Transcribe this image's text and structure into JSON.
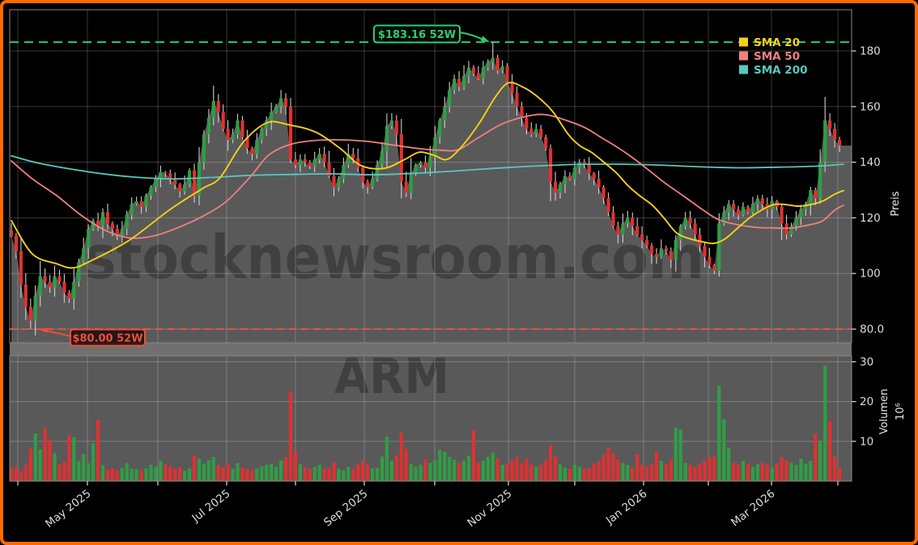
{
  "window": {
    "border_color": "#ff6a00",
    "background": "#000000"
  },
  "watermark": {
    "main": "stocknewsroom.com",
    "symbol": "ARM"
  },
  "legend": [
    {
      "label": "SMA 20",
      "color": "#f5d019"
    },
    {
      "label": "SMA 50",
      "color": "#f08080"
    },
    {
      "label": "SMA 200",
      "color": "#57c8bd"
    }
  ],
  "axes": {
    "price_label": "Preis",
    "volume_label": "Volumen",
    "volume_exponent": "10⁶",
    "price_ticks": [
      {
        "value": 180,
        "label": "180"
      },
      {
        "value": 160,
        "label": "160"
      },
      {
        "value": 140,
        "label": "140"
      },
      {
        "value": 120,
        "label": "120"
      },
      {
        "value": 100,
        "label": "100"
      },
      {
        "value": 80,
        "label": "80.0"
      }
    ],
    "volume_ticks": [
      {
        "value": 30,
        "label": "30"
      },
      {
        "value": 20,
        "label": "20"
      },
      {
        "value": 10,
        "label": "10"
      }
    ],
    "months": [
      {
        "x": 22,
        "label": ""
      },
      {
        "x": 108,
        "label": "May 2025"
      },
      {
        "x": 195,
        "label": ""
      },
      {
        "x": 280,
        "label": "Jul 2025"
      },
      {
        "x": 365,
        "label": ""
      },
      {
        "x": 450,
        "label": "Sep 2025"
      },
      {
        "x": 537,
        "label": ""
      },
      {
        "x": 628,
        "label": "Nov 2025"
      },
      {
        "x": 710,
        "label": ""
      },
      {
        "x": 795,
        "label": "Jan 2026"
      },
      {
        "x": 875,
        "label": ""
      },
      {
        "x": 953,
        "label": "Mar 2026"
      },
      {
        "x": 1035,
        "label": ""
      }
    ]
  },
  "annotations": {
    "high": {
      "label": "$183.16 52W",
      "value": 183.16,
      "color": "#2ecc71"
    },
    "low": {
      "label": "$80.00 52W",
      "value": 80.0,
      "color": "#ef4f3c"
    }
  },
  "colors": {
    "up": "#2f9e44",
    "down": "#e03131",
    "wick": "#cfcfcf",
    "area": "#595959",
    "band": "#71706e",
    "volume_bg": "#595959",
    "grid": "rgba(255,255,255,0.22)",
    "spine": "#8a8a8a",
    "sma20": "#f5d019",
    "sma50": "#f08080",
    "sma200": "#57c8bd",
    "high_line": "#2ecc71",
    "low_line": "#ef4f3c"
  },
  "chart_data": {
    "type": "candlestick",
    "symbol": "ARM",
    "x_range": [
      "Apr 2025",
      "Apr 2026"
    ],
    "price_axis": {
      "label": "Preis",
      "min": 74,
      "max": 188,
      "gridlines": [
        80,
        100,
        120,
        140,
        160,
        180
      ]
    },
    "volume_axis": {
      "label": "Volumen",
      "unit": "10^6",
      "gridlines": [
        10,
        20,
        30
      ]
    },
    "high_52w": 183.16,
    "low_52w": 80.0,
    "first_open": 115.5,
    "closes": [
      113.5,
      108,
      96,
      88,
      83,
      92,
      99,
      97,
      95,
      99,
      97,
      93,
      91,
      97,
      104,
      109,
      116,
      119,
      117,
      122,
      118,
      116,
      113.5,
      116,
      121,
      125,
      126,
      124,
      128,
      131,
      134,
      136.5,
      136,
      134,
      132,
      129.5,
      132,
      137,
      128,
      140,
      150,
      156,
      162,
      158,
      152,
      148,
      150,
      155,
      149,
      145,
      143,
      148,
      152,
      155,
      158,
      160,
      163,
      160,
      141,
      139,
      141,
      140,
      138.5,
      141,
      143,
      140,
      135,
      131,
      134,
      139,
      143,
      141.5,
      138,
      133,
      131,
      134,
      139,
      144,
      153,
      155,
      150,
      133,
      129,
      136,
      139,
      140,
      138,
      142,
      149,
      155,
      160,
      166,
      170,
      167,
      171,
      174,
      172,
      170,
      174,
      176,
      177.5,
      173,
      174.5,
      169,
      165,
      160,
      156,
      152,
      150,
      152,
      149,
      145,
      133,
      129,
      132,
      135,
      134,
      138,
      140,
      139,
      136,
      134,
      131,
      127,
      122,
      117,
      114,
      118,
      120,
      117,
      114,
      112,
      110,
      107,
      106,
      109,
      108,
      105,
      112,
      117,
      120,
      118,
      114,
      110,
      106,
      103,
      101,
      118,
      122,
      125,
      123,
      121,
      124,
      122,
      125,
      127,
      125,
      123,
      126,
      124,
      118,
      114,
      117,
      120,
      123,
      125,
      130,
      127,
      140,
      155,
      152,
      148,
      146
    ],
    "volumes_millions": [
      3.2,
      3.6,
      2.4,
      4.1,
      8.2,
      12.0,
      8.0,
      13.4,
      10.5,
      7.0,
      4.2,
      4.8,
      11.5,
      11.0,
      5.0,
      6.8,
      4.5,
      9.5,
      15.4,
      4.0,
      3.0,
      3.3,
      2.6,
      3.4,
      4.6,
      3.1,
      3.0,
      2.7,
      3.2,
      4.1,
      3.6,
      5.1,
      4.2,
      3.8,
      3.1,
      3.5,
      2.6,
      3.2,
      6.5,
      5.6,
      4.4,
      5.2,
      6.1,
      4.1,
      3.4,
      4.2,
      3.1,
      4.6,
      3.4,
      3.1,
      2.7,
      3.2,
      3.7,
      4.1,
      4.4,
      3.6,
      5.2,
      6.0,
      22.5,
      7.5,
      4.2,
      3.4,
      3.1,
      3.6,
      4.1,
      3.2,
      3.4,
      4.6,
      3.1,
      2.7,
      3.6,
      3.1,
      4.2,
      5.1,
      4.1,
      3.2,
      3.4,
      6.2,
      11.2,
      5.1,
      6.4,
      12.2,
      8.1,
      4.4,
      3.6,
      4.1,
      5.4,
      4.6,
      5.2,
      7.8,
      7.4,
      6.1,
      5.4,
      4.6,
      5.1,
      6.4,
      12.8,
      4.6,
      5.2,
      6.1,
      7.2,
      5.6,
      4.1,
      4.4,
      5.2,
      6.1,
      4.4,
      5.6,
      4.1,
      3.6,
      4.1,
      5.2,
      9.0,
      6.1,
      4.2,
      3.4,
      3.1,
      4.1,
      3.6,
      3.2,
      3.4,
      4.4,
      5.1,
      6.6,
      8.4,
      7.1,
      5.4,
      4.6,
      4.1,
      3.4,
      6.7,
      4.1,
      3.6,
      4.4,
      7.4,
      5.1,
      4.2,
      5.4,
      13.4,
      13.0,
      4.6,
      4.1,
      3.6,
      4.4,
      5.2,
      6.1,
      6.1,
      24.0,
      15.5,
      8.4,
      4.6,
      4.1,
      5.1,
      4.4,
      3.6,
      4.2,
      4.6,
      4.1,
      3.4,
      4.4,
      6.1,
      5.2,
      4.6,
      4.1,
      5.6,
      4.4,
      5.1,
      11.9,
      10.2,
      29.0,
      15.1,
      6.2,
      3.4
    ],
    "wick_overrides": {
      "4": {
        "low": 80.0,
        "high": 91
      },
      "42": {
        "high": 167.5
      },
      "56": {
        "high": 166
      },
      "78": {
        "high": 157.5
      },
      "81": {
        "low": 127
      },
      "100": {
        "high": 183.16
      },
      "112": {
        "low": 126
      },
      "134": {
        "low": 103.5
      },
      "146": {
        "low": 99.8
      },
      "160": {
        "low": 112
      },
      "169": {
        "high": 163.5
      }
    },
    "sma20_points": [
      [
        14,
        119
      ],
      [
        40,
        107
      ],
      [
        70,
        103.5
      ],
      [
        90,
        102
      ],
      [
        112,
        104.5
      ],
      [
        160,
        112
      ],
      [
        210,
        123
      ],
      [
        250,
        130.5
      ],
      [
        272,
        134.5
      ],
      [
        300,
        147
      ],
      [
        330,
        154.2
      ],
      [
        356,
        153.5
      ],
      [
        390,
        150.8
      ],
      [
        420,
        145
      ],
      [
        446,
        138.8
      ],
      [
        475,
        137.8
      ],
      [
        500,
        141
      ],
      [
        518,
        143.6
      ],
      [
        536,
        142.5
      ],
      [
        552,
        141
      ],
      [
        570,
        145.5
      ],
      [
        592,
        154
      ],
      [
        612,
        163.5
      ],
      [
        628,
        168.5
      ],
      [
        646,
        167
      ],
      [
        662,
        164
      ],
      [
        682,
        158.5
      ],
      [
        702,
        150
      ],
      [
        716,
        146
      ],
      [
        731,
        143.5
      ],
      [
        746,
        140
      ],
      [
        762,
        136
      ],
      [
        776,
        131.5
      ],
      [
        790,
        128
      ],
      [
        806,
        124.5
      ],
      [
        820,
        120
      ],
      [
        836,
        114.5
      ],
      [
        852,
        112.5
      ],
      [
        866,
        111.5
      ],
      [
        882,
        110.8
      ],
      [
        896,
        112.5
      ],
      [
        912,
        116.5
      ],
      [
        926,
        120
      ],
      [
        942,
        123
      ],
      [
        956,
        124.8
      ],
      [
        970,
        124.8
      ],
      [
        986,
        124.2
      ],
      [
        1002,
        124.8
      ],
      [
        1016,
        126
      ],
      [
        1031,
        128.5
      ],
      [
        1042,
        129.8
      ]
    ],
    "sma50_points": [
      [
        14,
        140.5
      ],
      [
        40,
        134
      ],
      [
        70,
        128
      ],
      [
        100,
        121
      ],
      [
        130,
        115.5
      ],
      [
        160,
        112.8
      ],
      [
        190,
        113.5
      ],
      [
        220,
        116.5
      ],
      [
        250,
        120.5
      ],
      [
        280,
        126
      ],
      [
        310,
        135
      ],
      [
        332,
        142.6
      ],
      [
        360,
        146.5
      ],
      [
        400,
        148
      ],
      [
        450,
        147.6
      ],
      [
        490,
        146
      ],
      [
        520,
        144.8
      ],
      [
        545,
        144.3
      ],
      [
        566,
        144.5
      ],
      [
        592,
        149
      ],
      [
        622,
        154
      ],
      [
        656,
        156.8
      ],
      [
        676,
        157
      ],
      [
        700,
        155
      ],
      [
        722,
        152.5
      ],
      [
        742,
        149
      ],
      [
        762,
        145.5
      ],
      [
        782,
        141.5
      ],
      [
        802,
        137
      ],
      [
        822,
        132.4
      ],
      [
        846,
        127.5
      ],
      [
        870,
        122.5
      ],
      [
        888,
        119.3
      ],
      [
        912,
        117.5
      ],
      [
        936,
        116.5
      ],
      [
        954,
        116.4
      ],
      [
        976,
        116.3
      ],
      [
        1000,
        117.5
      ],
      [
        1016,
        118.9
      ],
      [
        1031,
        122.7
      ],
      [
        1042,
        124.5
      ]
    ],
    "sma200_points": [
      [
        14,
        142.3
      ],
      [
        50,
        139.5
      ],
      [
        110,
        136.5
      ],
      [
        160,
        134.8
      ],
      [
        210,
        134
      ],
      [
        260,
        134.5
      ],
      [
        310,
        135.3
      ],
      [
        360,
        135.6
      ],
      [
        410,
        135.8
      ],
      [
        460,
        135.5
      ],
      [
        510,
        136
      ],
      [
        560,
        136.8
      ],
      [
        610,
        137.8
      ],
      [
        660,
        138.6
      ],
      [
        710,
        139.2
      ],
      [
        760,
        139.3
      ],
      [
        810,
        139
      ],
      [
        860,
        138.4
      ],
      [
        910,
        138
      ],
      [
        960,
        138.2
      ],
      [
        1010,
        138.6
      ],
      [
        1042,
        139.3
      ]
    ]
  }
}
